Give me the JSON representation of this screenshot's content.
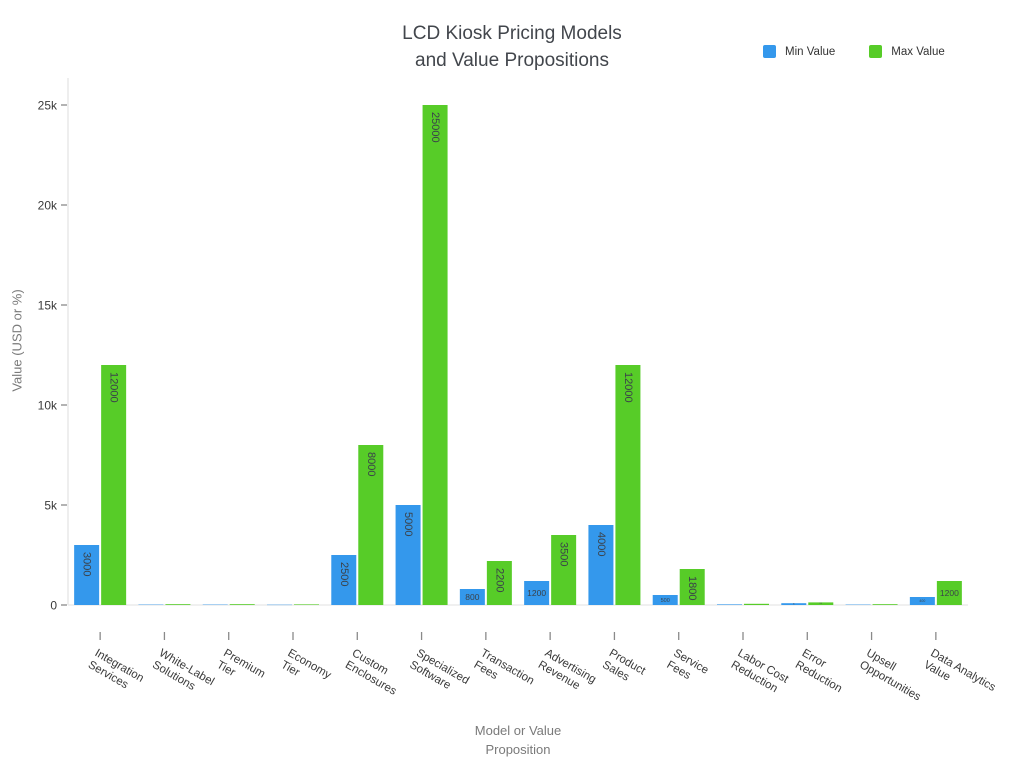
{
  "chart_data": {
    "type": "bar",
    "title": "LCD Kiosk Pricing Models and Value Propositions",
    "title_lines": [
      "LCD Kiosk Pricing Models",
      "and Value Propositions"
    ],
    "xlabel": "Model or Value Proposition",
    "xlabel_lines": [
      "Model or Value",
      "Proposition"
    ],
    "ylabel": "Value (USD or %)",
    "categories": [
      "Integration Services",
      "White-Label Solutions",
      "Premium Tier",
      "Economy Tier",
      "Custom Enclosures",
      "Specialized Software",
      "Transaction Fees",
      "Advertising Revenue",
      "Product Sales",
      "Service Fees",
      "Labor Cost Reduction",
      "Error Reduction",
      "Upsell Opportunities",
      "Data Analytics Value"
    ],
    "category_label_lines": [
      [
        "Integration",
        "Services"
      ],
      [
        "White-Label",
        "Solutions"
      ],
      [
        "Premium",
        "Tier"
      ],
      [
        "Economy",
        "Tier"
      ],
      [
        "Custom",
        "Enclosures"
      ],
      [
        "Specialized",
        "Software"
      ],
      [
        "Transaction",
        "Fees"
      ],
      [
        "Advertising",
        "Revenue"
      ],
      [
        "Product",
        "Sales"
      ],
      [
        "Service",
        "Fees"
      ],
      [
        "Labor Cost",
        "Reduction"
      ],
      [
        "Error",
        "Reduction"
      ],
      [
        "Upsell",
        "Opportunities"
      ],
      [
        "Data Analytics",
        "Value"
      ]
    ],
    "series": [
      {
        "name": "Min Value",
        "color": "#3498EC",
        "values": [
          3000,
          20,
          20,
          15,
          2500,
          5000,
          800,
          1200,
          4000,
          500,
          30,
          90,
          20,
          400
        ]
      },
      {
        "name": "Max Value",
        "color": "#57CC28",
        "values": [
          12000,
          40,
          40,
          30,
          8000,
          25000,
          2200,
          3500,
          12000,
          1800,
          60,
          130,
          40,
          1200
        ]
      }
    ],
    "ylim": [
      0,
      25000
    ],
    "y_ticks": [
      {
        "v": 0,
        "label": "0"
      },
      {
        "v": 5000,
        "label": "5k"
      },
      {
        "v": 10000,
        "label": "10k"
      },
      {
        "v": 15000,
        "label": "15k"
      },
      {
        "v": 20000,
        "label": "20k"
      },
      {
        "v": 25000,
        "label": "25k"
      }
    ],
    "grid": false,
    "legend_position": "top-right"
  }
}
